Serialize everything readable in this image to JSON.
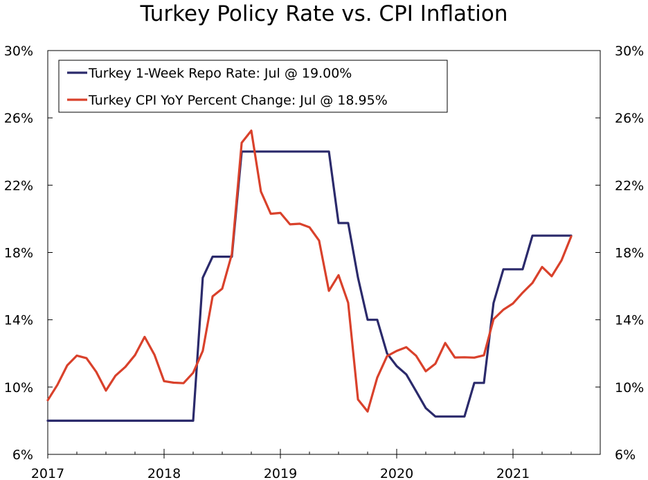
{
  "chart_data": {
    "type": "line",
    "title": "Turkey Policy Rate vs. CPI Inflation",
    "xlabel": "",
    "ylabel": "",
    "ylim": [
      6,
      30
    ],
    "y_ticks": [
      "6%",
      "10%",
      "14%",
      "18%",
      "22%",
      "26%",
      "30%"
    ],
    "y_tick_values": [
      6,
      10,
      14,
      18,
      22,
      26,
      30
    ],
    "x_range": [
      2017,
      2021.75
    ],
    "x_ticks": [
      "2017",
      "2018",
      "2019",
      "2020",
      "2021"
    ],
    "x_tick_values": [
      2017,
      2018,
      2019,
      2020,
      2021
    ],
    "grid": false,
    "legend_position": "top-left",
    "series": [
      {
        "name": "Turkey 1-Week Repo Rate: Jul @ 19.00%",
        "color": "#2b2a6b",
        "x": [
          2017.0,
          2018.25,
          2018.333,
          2018.417,
          2018.5,
          2018.583,
          2018.667,
          2018.75,
          2018.833,
          2018.917,
          2019.0,
          2019.083,
          2019.167,
          2019.25,
          2019.333,
          2019.417,
          2019.5,
          2019.583,
          2019.667,
          2019.75,
          2019.833,
          2019.917,
          2020.0,
          2020.083,
          2020.167,
          2020.25,
          2020.333,
          2020.417,
          2020.5,
          2020.583,
          2020.667,
          2020.75,
          2020.833,
          2020.917,
          2021.0,
          2021.083,
          2021.167,
          2021.25,
          2021.333,
          2021.417,
          2021.5
        ],
        "values": [
          8.0,
          8.0,
          16.5,
          17.75,
          17.75,
          17.75,
          24.0,
          24.0,
          24.0,
          24.0,
          24.0,
          24.0,
          24.0,
          24.0,
          24.0,
          24.0,
          19.75,
          19.75,
          16.5,
          14.0,
          14.0,
          12.0,
          11.25,
          10.75,
          9.75,
          8.75,
          8.25,
          8.25,
          8.25,
          8.25,
          10.25,
          10.25,
          15.0,
          17.0,
          17.0,
          17.0,
          19.0,
          19.0,
          19.0,
          19.0,
          19.0
        ]
      },
      {
        "name": "Turkey CPI YoY Percent Change: Jul @ 18.95%",
        "color": "#d9412b",
        "x": [
          2017.0,
          2017.083,
          2017.167,
          2017.25,
          2017.333,
          2017.417,
          2017.5,
          2017.583,
          2017.667,
          2017.75,
          2017.833,
          2017.917,
          2018.0,
          2018.083,
          2018.167,
          2018.25,
          2018.333,
          2018.417,
          2018.5,
          2018.583,
          2018.667,
          2018.75,
          2018.833,
          2018.917,
          2019.0,
          2019.083,
          2019.167,
          2019.25,
          2019.333,
          2019.417,
          2019.5,
          2019.583,
          2019.667,
          2019.75,
          2019.833,
          2019.917,
          2020.0,
          2020.083,
          2020.167,
          2020.25,
          2020.333,
          2020.417,
          2020.5,
          2020.583,
          2020.667,
          2020.75,
          2020.833,
          2020.917,
          2021.0,
          2021.083,
          2021.167,
          2021.25,
          2021.333,
          2021.417,
          2021.5
        ],
        "values": [
          9.22,
          10.13,
          11.29,
          11.87,
          11.72,
          10.9,
          9.79,
          10.68,
          11.2,
          11.9,
          12.98,
          11.92,
          10.35,
          10.26,
          10.23,
          10.85,
          12.15,
          15.39,
          15.85,
          17.9,
          24.52,
          25.24,
          21.62,
          20.3,
          20.35,
          19.67,
          19.71,
          19.5,
          18.71,
          15.72,
          16.65,
          15.01,
          9.26,
          8.55,
          10.56,
          11.84,
          12.15,
          12.37,
          11.86,
          10.94,
          11.39,
          12.62,
          11.76,
          11.77,
          11.75,
          11.89,
          14.03,
          14.6,
          14.97,
          15.61,
          16.19,
          17.14,
          16.59,
          17.53,
          18.95
        ]
      }
    ]
  }
}
